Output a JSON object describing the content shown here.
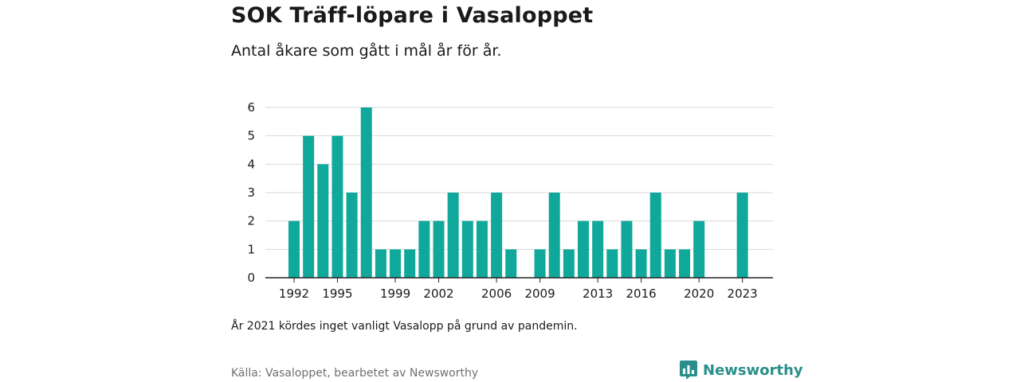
{
  "title": "SOK Träff-löpare i Vasaloppet",
  "subtitle": "Antal åkare som gått i mål år för år.",
  "note": "År 2021 kördes inget vanligt Vasalopp på grund av pandemin.",
  "source": "Källa: Vasaloppet, bearbetet av Newsworthy",
  "brand": {
    "name": "Newsworthy",
    "color": "#2a8f8a",
    "icon": "newsworthy-logo-icon"
  },
  "chart_data": {
    "type": "bar",
    "title": "SOK Träff-löpare i Vasaloppet",
    "subtitle": "Antal åkare som gått i mål år för år.",
    "xlabel": "",
    "ylabel": "",
    "x": [
      1992,
      1993,
      1994,
      1995,
      1996,
      1997,
      1998,
      1999,
      2000,
      2001,
      2002,
      2003,
      2004,
      2005,
      2006,
      2007,
      2008,
      2009,
      2010,
      2011,
      2012,
      2013,
      2014,
      2015,
      2016,
      2017,
      2018,
      2019,
      2020,
      2021,
      2022,
      2023
    ],
    "values": [
      2,
      5,
      4,
      5,
      3,
      6,
      1,
      1,
      1,
      2,
      2,
      3,
      2,
      2,
      3,
      1,
      0,
      1,
      3,
      1,
      2,
      2,
      1,
      2,
      1,
      3,
      1,
      1,
      2,
      0,
      0,
      3
    ],
    "xticks": [
      1992,
      1995,
      1999,
      2002,
      2006,
      2009,
      2013,
      2016,
      2020,
      2023
    ],
    "yticks": [
      0,
      1,
      2,
      3,
      4,
      5,
      6
    ],
    "ylim": [
      0,
      6
    ],
    "grid": true,
    "bar_color": "#0fa89b"
  }
}
